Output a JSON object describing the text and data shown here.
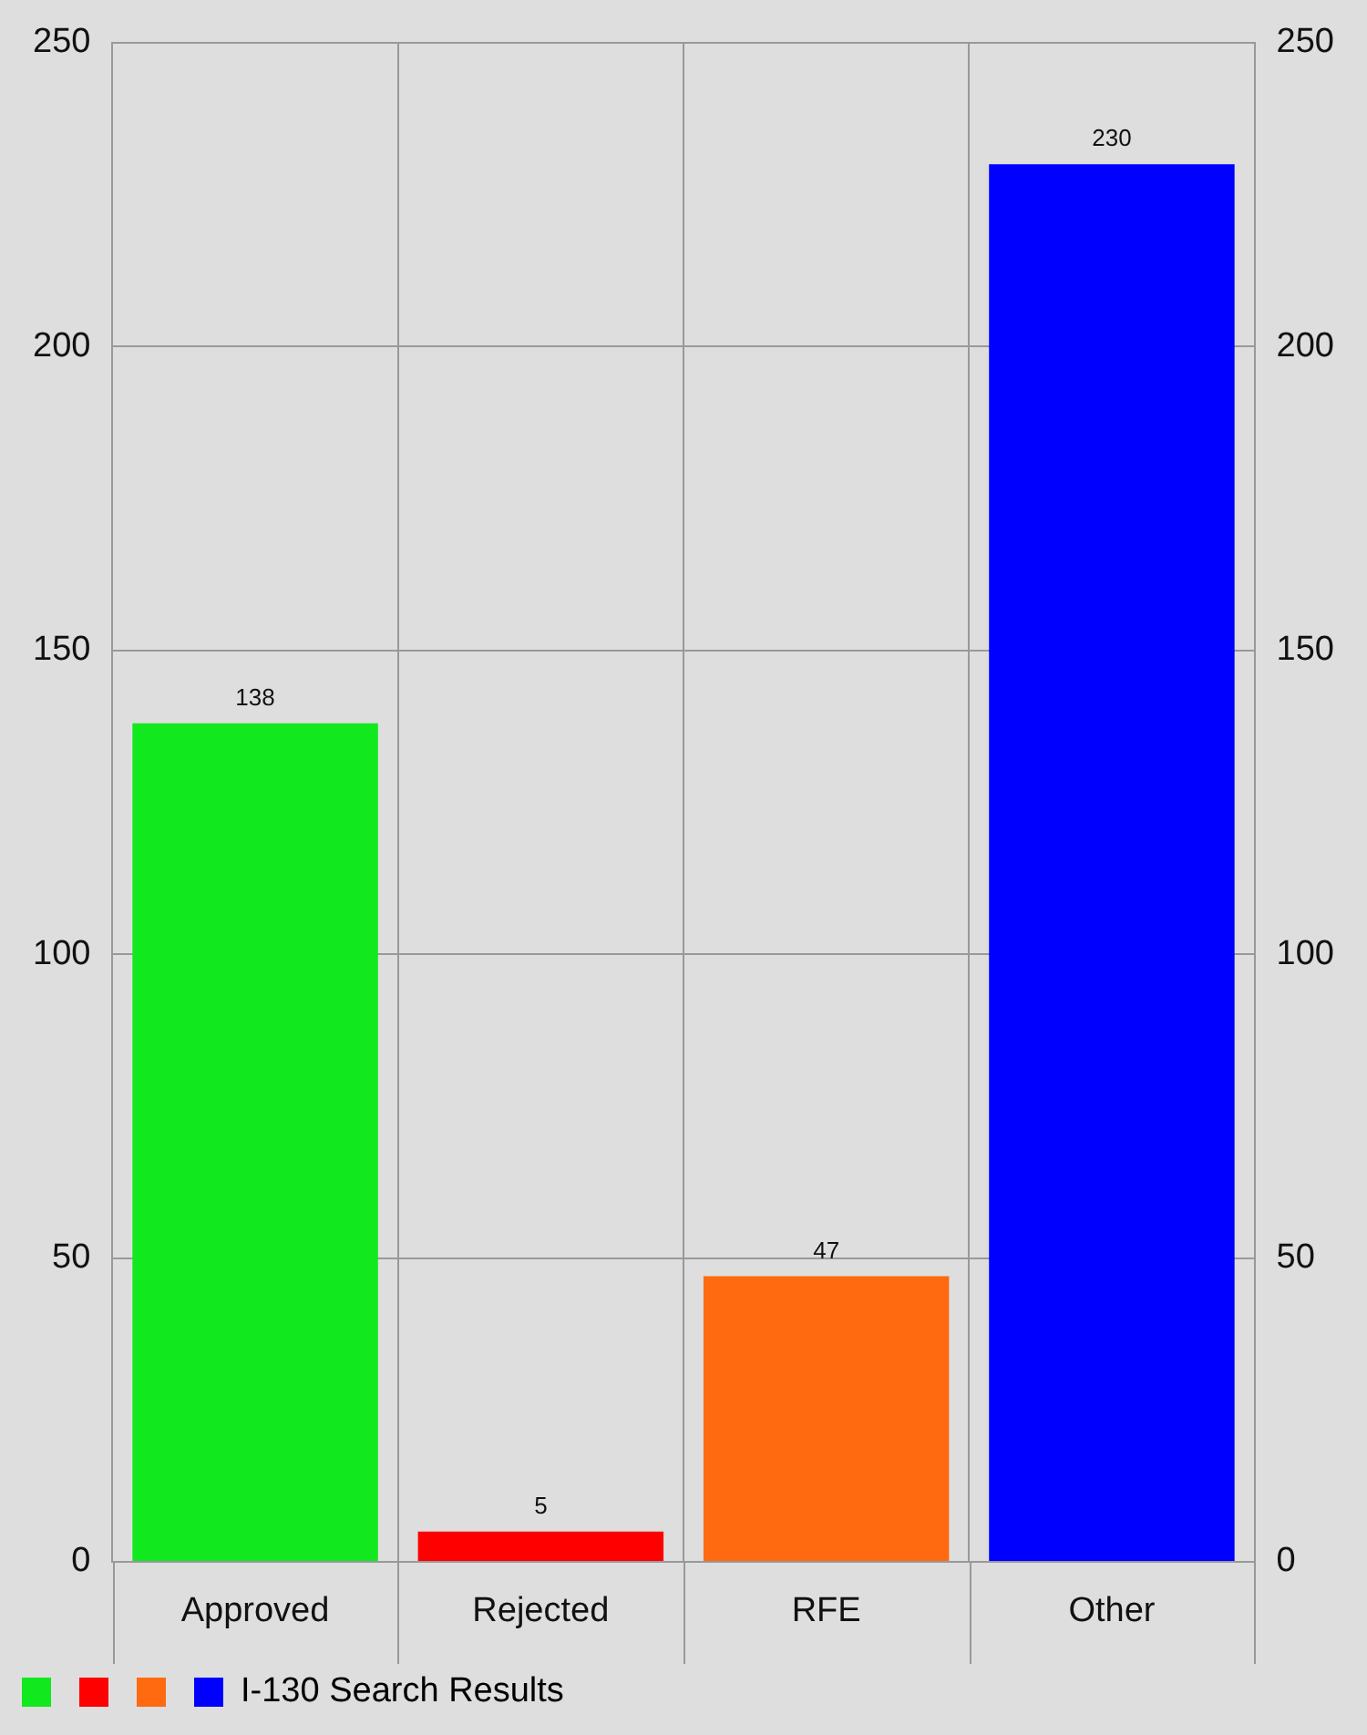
{
  "chart_data": {
    "type": "bar",
    "categories": [
      "Approved",
      "Rejected",
      "RFE",
      "Other"
    ],
    "series": [
      {
        "name": "I-130 Search Results",
        "colors": [
          "#12e81e",
          "#ff0000",
          "#ff6a10",
          "#0000ff"
        ],
        "values": [
          138,
          5,
          47,
          230
        ]
      }
    ],
    "ylim": [
      0,
      250
    ],
    "yticks": [
      0,
      50,
      100,
      150,
      200,
      250
    ],
    "y2lim": [
      0,
      250
    ],
    "y2ticks": [
      0,
      50,
      100,
      150,
      200,
      250
    ],
    "grid": true,
    "data_labels": true,
    "legend": "bottom left"
  }
}
